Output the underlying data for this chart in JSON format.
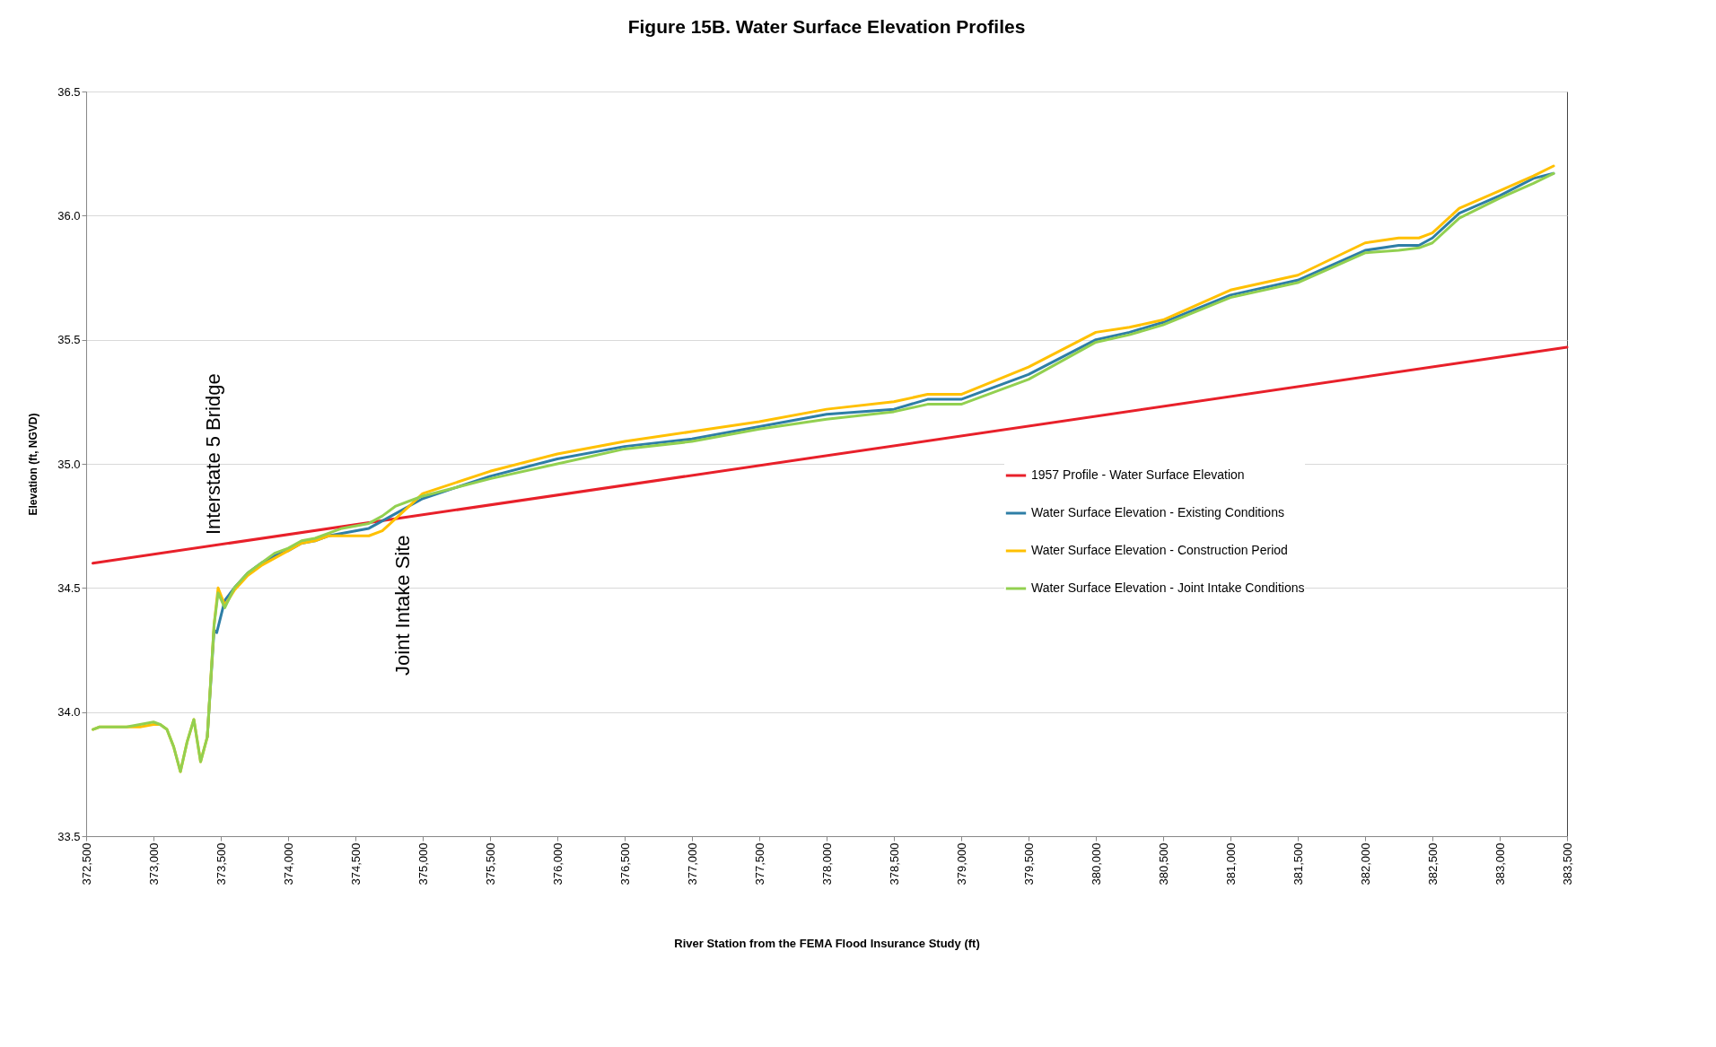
{
  "chart_data": {
    "type": "line",
    "title": "Figure 15B.   Water Surface Elevation Profiles",
    "xlabel": "River Station from the FEMA Flood Insurance Study (ft)",
    "ylabel": "Elevation (ft, NGVD)",
    "xlim": [
      372500,
      383500
    ],
    "xticks": [
      {
        "value": 372500,
        "label": "372,500"
      },
      {
        "value": 373000,
        "label": "373,000"
      },
      {
        "value": 373500,
        "label": "373,500"
      },
      {
        "value": 374000,
        "label": "374,000"
      },
      {
        "value": 374500,
        "label": "374,500"
      },
      {
        "value": 375000,
        "label": "375,000"
      },
      {
        "value": 375500,
        "label": "375,500"
      },
      {
        "value": 376000,
        "label": "376,000"
      },
      {
        "value": 376500,
        "label": "376,500"
      },
      {
        "value": 377000,
        "label": "377,000"
      },
      {
        "value": 377500,
        "label": "377,500"
      },
      {
        "value": 378000,
        "label": "378,000"
      },
      {
        "value": 378500,
        "label": "378,500"
      },
      {
        "value": 379000,
        "label": "379,000"
      },
      {
        "value": 379500,
        "label": "379,500"
      },
      {
        "value": 380000,
        "label": "380,000"
      },
      {
        "value": 380500,
        "label": "380,500"
      },
      {
        "value": 381000,
        "label": "381,000"
      },
      {
        "value": 381500,
        "label": "381,500"
      },
      {
        "value": 382000,
        "label": "382,000"
      },
      {
        "value": 382500,
        "label": "382,500"
      },
      {
        "value": 383000,
        "label": "383,000"
      },
      {
        "value": 383500,
        "label": "383,500"
      }
    ],
    "ylim": [
      33.5,
      36.5
    ],
    "yticks": [
      33.5,
      {
        "value": 34,
        "label": "34.0"
      },
      34.5,
      {
        "value": 35,
        "label": "35.0"
      },
      35.5,
      {
        "value": 36,
        "label": "36.0"
      },
      36.5
    ],
    "grid": "y",
    "legend": "right",
    "annotations": [
      "Interstate 5 Bridge",
      "Joint Intake Site"
    ],
    "series": [
      {
        "name": "1957 Profile - Water Surface Elevation",
        "color": "#e8202a",
        "x": [
          372550,
          383500
        ],
        "values": [
          34.6,
          35.47
        ]
      },
      {
        "name": "Water Surface Elevation - Existing Conditions",
        "color": "#2e7ea6",
        "x": [
          373400,
          373450,
          373470,
          373530,
          373600,
          373700,
          373800,
          373900,
          374000,
          374100,
          374200,
          374300,
          374400,
          374500,
          374600,
          374700,
          374800,
          374900,
          375000,
          375500,
          376000,
          376500,
          377000,
          377500,
          378000,
          378500,
          378750,
          379000,
          379500,
          380000,
          380250,
          380500,
          381000,
          381500,
          382000,
          382250,
          382400,
          382500,
          382700,
          383000,
          383250,
          383400
        ],
        "values": [
          33.9,
          34.33,
          34.32,
          34.45,
          34.5,
          34.56,
          34.6,
          34.63,
          34.65,
          34.68,
          34.69,
          34.71,
          34.72,
          34.73,
          34.74,
          34.77,
          34.8,
          34.83,
          34.86,
          34.95,
          35.02,
          35.07,
          35.1,
          35.15,
          35.2,
          35.22,
          35.26,
          35.26,
          35.36,
          35.5,
          35.53,
          35.57,
          35.68,
          35.74,
          35.86,
          35.88,
          35.88,
          35.91,
          36.01,
          36.08,
          36.15,
          36.17
        ]
      },
      {
        "name": "Water Surface Elevation - Construction Period",
        "color": "#ffc000",
        "x": [
          372550,
          372600,
          372800,
          372900,
          373000,
          373050,
          373100,
          373150,
          373200,
          373250,
          373300,
          373350,
          373400,
          373450,
          373480,
          373530,
          373600,
          373700,
          373800,
          373900,
          374000,
          374100,
          374200,
          374300,
          374400,
          374500,
          374600,
          374700,
          374800,
          374900,
          375000,
          375500,
          376000,
          376500,
          377000,
          377500,
          378000,
          378500,
          378750,
          379000,
          379500,
          380000,
          380250,
          380500,
          381000,
          381500,
          382000,
          382250,
          382400,
          382500,
          382700,
          383000,
          383250,
          383400
        ],
        "values": [
          33.93,
          33.94,
          33.94,
          33.94,
          33.95,
          33.95,
          33.93,
          33.86,
          33.76,
          33.88,
          33.97,
          33.8,
          33.9,
          34.35,
          34.5,
          34.43,
          34.49,
          34.55,
          34.59,
          34.62,
          34.65,
          34.68,
          34.69,
          34.71,
          34.71,
          34.71,
          34.71,
          34.73,
          34.78,
          34.83,
          34.88,
          34.97,
          35.04,
          35.09,
          35.13,
          35.17,
          35.22,
          35.25,
          35.28,
          35.28,
          35.39,
          35.53,
          35.55,
          35.58,
          35.7,
          35.76,
          35.89,
          35.91,
          35.91,
          35.93,
          36.03,
          36.1,
          36.16,
          36.2
        ]
      },
      {
        "name": "Water Surface Elevation - Joint Intake Conditions",
        "color": "#92d050",
        "x": [
          372550,
          372600,
          372800,
          372900,
          373000,
          373050,
          373100,
          373150,
          373200,
          373250,
          373300,
          373350,
          373400,
          373450,
          373480,
          373530,
          373600,
          373700,
          373800,
          373900,
          374000,
          374100,
          374200,
          374300,
          374400,
          374500,
          374600,
          374700,
          374800,
          374900,
          375000,
          375500,
          376000,
          376500,
          377000,
          377500,
          378000,
          378500,
          378750,
          379000,
          379500,
          380000,
          380250,
          380500,
          381000,
          381500,
          382000,
          382250,
          382400,
          382500,
          382700,
          383000,
          383250,
          383400
        ],
        "values": [
          33.93,
          33.94,
          33.94,
          33.95,
          33.96,
          33.95,
          33.93,
          33.86,
          33.76,
          33.88,
          33.97,
          33.8,
          33.9,
          34.35,
          34.48,
          34.42,
          34.5,
          34.56,
          34.6,
          34.64,
          34.66,
          34.69,
          34.7,
          34.72,
          34.74,
          34.75,
          34.76,
          34.79,
          34.83,
          34.85,
          34.87,
          34.94,
          35.0,
          35.06,
          35.09,
          35.14,
          35.18,
          35.21,
          35.24,
          35.24,
          35.34,
          35.49,
          35.52,
          35.56,
          35.67,
          35.73,
          35.85,
          35.86,
          35.87,
          35.89,
          35.99,
          36.07,
          36.13,
          36.17
        ]
      }
    ]
  }
}
